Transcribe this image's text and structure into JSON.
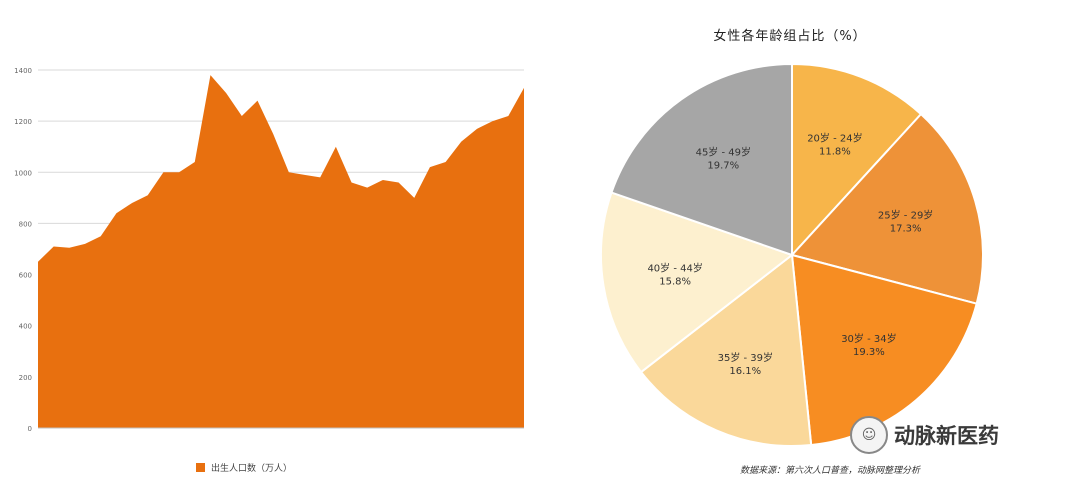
{
  "chart_data": [
    {
      "type": "area",
      "title": "",
      "xlabel": "",
      "ylabel": "",
      "ylim": [
        0,
        1400
      ],
      "y_ticks": [
        0,
        200,
        400,
        600,
        800,
        1000,
        1200,
        1400
      ],
      "grid": true,
      "color": "#E8700F",
      "legend_position": "bottom",
      "series": [
        {
          "name": "出生人口数（万人）",
          "values": [
            650,
            710,
            705,
            720,
            750,
            840,
            880,
            910,
            1000,
            1000,
            1040,
            1380,
            1310,
            1220,
            1280,
            1150,
            1000,
            990,
            980,
            1100,
            960,
            940,
            970,
            960,
            900,
            1020,
            1040,
            1120,
            1170,
            1200,
            1220,
            1330
          ]
        }
      ]
    },
    {
      "type": "pie",
      "title": "女性各年龄组占比（%）",
      "slices": [
        {
          "label": "20岁 - 24岁",
          "value": 11.8,
          "pct": "11.8%",
          "color": "#F7B54A"
        },
        {
          "label": "25岁 - 29岁",
          "value": 17.3,
          "pct": "17.3%",
          "color": "#EE9238"
        },
        {
          "label": "30岁 - 34岁",
          "value": 19.3,
          "pct": "19.3%",
          "color": "#F78D22"
        },
        {
          "label": "35岁 - 39岁",
          "value": 16.1,
          "pct": "16.1%",
          "color": "#FAD89A"
        },
        {
          "label": "40岁 - 44岁",
          "value": 15.8,
          "pct": "15.8%",
          "color": "#FDF0CF"
        },
        {
          "label": "45岁 - 49岁",
          "value": 19.7,
          "pct": "19.7%",
          "color": "#A6A6A6"
        }
      ]
    }
  ],
  "source_text": "数据来源：第六次人口普查，动脉网整理分析",
  "watermark": {
    "text": "动脉新医药",
    "icon": "wechat-logo-icon"
  }
}
